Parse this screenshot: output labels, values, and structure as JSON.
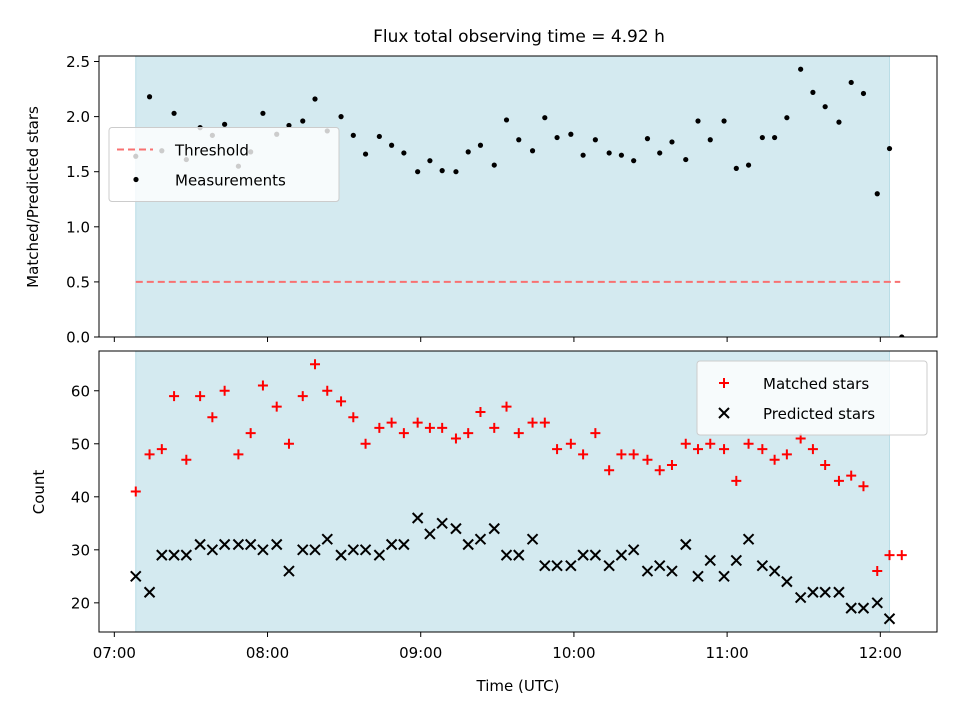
{
  "chart_data": {
    "title": "Flux total observing time = 4.92 h",
    "xlabel": "Time (UTC)",
    "x_unit": "hours (UTC, decimal)",
    "xlim": [
      6.9,
      12.37
    ],
    "xticks": [
      {
        "value": 7.0,
        "label": "07:00"
      },
      {
        "value": 8.0,
        "label": "08:00"
      },
      {
        "value": 9.0,
        "label": "09:00"
      },
      {
        "value": 10.0,
        "label": "10:00"
      },
      {
        "value": 11.0,
        "label": "11:00"
      },
      {
        "value": 12.0,
        "label": "12:00"
      }
    ],
    "observing_window": [
      7.14,
      12.06
    ],
    "window_color": "#d4eaf0",
    "panels": [
      {
        "type": "scatter",
        "ylabel": "Matched/Predicted stars",
        "ylim": [
          0,
          2.55
        ],
        "yticks": [
          "0.0",
          "0.5",
          "1.0",
          "1.5",
          "2.0",
          "2.5"
        ],
        "legend_position": "center-left",
        "threshold": {
          "name": "Threshold",
          "y": 0.5,
          "x_range": [
            7.14,
            12.13
          ],
          "color": "#f87171"
        },
        "series": [
          {
            "name": "Measurements",
            "color": "#000000",
            "x": [
              7.14,
              7.23,
              7.31,
              7.39,
              7.47,
              7.56,
              7.64,
              7.72,
              7.81,
              7.89,
              7.97,
              8.06,
              8.14,
              8.23,
              8.31,
              8.39,
              8.48,
              8.56,
              8.64,
              8.73,
              8.81,
              8.89,
              8.98,
              9.06,
              9.14,
              9.23,
              9.31,
              9.39,
              9.48,
              9.56,
              9.64,
              9.73,
              9.81,
              9.89,
              9.98,
              10.06,
              10.14,
              10.23,
              10.31,
              10.39,
              10.48,
              10.56,
              10.64,
              10.73,
              10.81,
              10.89,
              10.98,
              11.06,
              11.14,
              11.23,
              11.31,
              11.39,
              11.48,
              11.56,
              11.64,
              11.73,
              11.81,
              11.89,
              11.98,
              12.06,
              12.14
            ],
            "y": [
              1.64,
              2.18,
              1.69,
              2.03,
              1.61,
              1.9,
              1.83,
              1.93,
              1.55,
              1.68,
              2.03,
              1.84,
              1.92,
              1.96,
              2.16,
              1.87,
              2.0,
              1.83,
              1.66,
              1.82,
              1.74,
              1.67,
              1.5,
              1.6,
              1.51,
              1.5,
              1.68,
              1.74,
              1.56,
              1.97,
              1.79,
              1.69,
              1.99,
              1.81,
              1.84,
              1.65,
              1.79,
              1.67,
              1.65,
              1.6,
              1.8,
              1.67,
              1.77,
              1.61,
              1.96,
              1.79,
              1.96,
              1.53,
              1.56,
              1.81,
              1.81,
              1.99,
              2.43,
              2.22,
              2.09,
              1.95,
              2.31,
              2.21,
              1.3,
              1.71,
              0.0
            ]
          }
        ]
      },
      {
        "type": "scatter",
        "ylabel": "Count",
        "ylim": [
          14.5,
          67.5
        ],
        "yticks": [
          "20",
          "30",
          "40",
          "50",
          "60"
        ],
        "legend_position": "top-right",
        "series": [
          {
            "name": "Matched stars",
            "marker": "plus",
            "color": "#ff0000",
            "x": [
              7.14,
              7.23,
              7.31,
              7.39,
              7.47,
              7.56,
              7.64,
              7.72,
              7.81,
              7.89,
              7.97,
              8.06,
              8.14,
              8.23,
              8.31,
              8.39,
              8.48,
              8.56,
              8.64,
              8.73,
              8.81,
              8.89,
              8.98,
              9.06,
              9.14,
              9.23,
              9.31,
              9.39,
              9.48,
              9.56,
              9.64,
              9.73,
              9.81,
              9.89,
              9.98,
              10.06,
              10.14,
              10.23,
              10.31,
              10.39,
              10.48,
              10.56,
              10.64,
              10.73,
              10.81,
              10.89,
              10.98,
              11.06,
              11.14,
              11.23,
              11.31,
              11.39,
              11.48,
              11.56,
              11.64,
              11.73,
              11.81,
              11.89,
              11.98,
              12.06,
              12.14
            ],
            "y": [
              41,
              48,
              49,
              59,
              47,
              59,
              55,
              60,
              48,
              52,
              61,
              57,
              50,
              59,
              65,
              60,
              58,
              55,
              50,
              53,
              54,
              52,
              54,
              53,
              53,
              51,
              52,
              56,
              53,
              57,
              52,
              54,
              54,
              49,
              50,
              48,
              52,
              45,
              48,
              48,
              47,
              45,
              46,
              50,
              49,
              50,
              49,
              43,
              50,
              49,
              47,
              48,
              51,
              49,
              46,
              43,
              44,
              42,
              26,
              29,
              29
            ]
          },
          {
            "name": "Predicted stars",
            "marker": "x",
            "color": "#000000",
            "x": [
              7.14,
              7.23,
              7.31,
              7.39,
              7.47,
              7.56,
              7.64,
              7.72,
              7.81,
              7.89,
              7.97,
              8.06,
              8.14,
              8.23,
              8.31,
              8.39,
              8.48,
              8.56,
              8.64,
              8.73,
              8.81,
              8.89,
              8.98,
              9.06,
              9.14,
              9.23,
              9.31,
              9.39,
              9.48,
              9.56,
              9.64,
              9.73,
              9.81,
              9.89,
              9.98,
              10.06,
              10.14,
              10.23,
              10.31,
              10.39,
              10.48,
              10.56,
              10.64,
              10.73,
              10.81,
              10.89,
              10.98,
              11.06,
              11.14,
              11.23,
              11.31,
              11.39,
              11.48,
              11.56,
              11.64,
              11.73,
              11.81,
              11.89,
              11.98,
              12.06
            ],
            "y": [
              25,
              22,
              29,
              29,
              29,
              31,
              30,
              31,
              31,
              31,
              30,
              31,
              26,
              30,
              30,
              32,
              29,
              30,
              30,
              29,
              31,
              31,
              36,
              33,
              35,
              34,
              31,
              32,
              34,
              29,
              29,
              32,
              27,
              27,
              27,
              29,
              29,
              27,
              29,
              30,
              26,
              27,
              26,
              31,
              25,
              28,
              25,
              28,
              32,
              27,
              26,
              24,
              21,
              22,
              22,
              22,
              19,
              19,
              20,
              17
            ]
          }
        ]
      }
    ]
  }
}
